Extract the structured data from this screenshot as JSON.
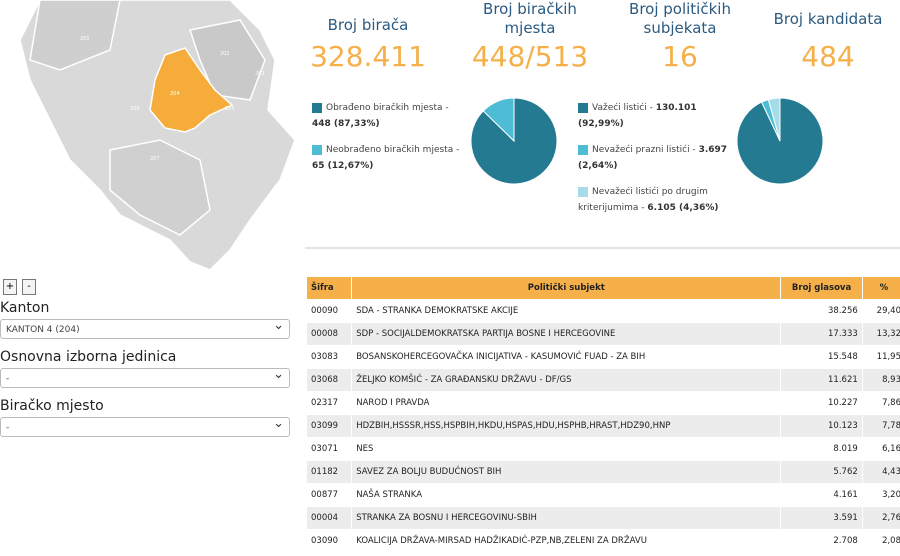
{
  "map": {
    "regions": [
      "204",
      "201",
      "202",
      "203",
      "205",
      "206",
      "207"
    ]
  },
  "zoom": {
    "plus": "+",
    "minus": "-"
  },
  "filters": [
    {
      "label": "Kanton",
      "value": "KANTON 4 (204)"
    },
    {
      "label": "Osnovna izborna jedinica",
      "value": "-"
    },
    {
      "label": "Biračko mjesto",
      "value": "-"
    }
  ],
  "stats": [
    {
      "label": "Broj birača",
      "value": "328.411"
    },
    {
      "label": "Broj biračkih mjesta",
      "value": "448/513"
    },
    {
      "label": "Broj političkih subjekata",
      "value": "16"
    },
    {
      "label": "Broj kandidata",
      "value": "484"
    }
  ],
  "pies": [
    {
      "type": "pie",
      "slices": [
        {
          "label": "Obrađeno biračkih mjesta -",
          "value": 448,
          "value_label": "448 (87,33%)",
          "color": "#237a91"
        },
        {
          "label": "Neobrađeno biračkih mjesta -",
          "value": 65,
          "value_label": "65 (12,67%)",
          "color": "#4dbcd4"
        }
      ]
    },
    {
      "type": "pie",
      "slices": [
        {
          "label": "Važeći listići -",
          "value": 130101,
          "value_label": "130.101 (92,99%)",
          "color": "#237a91"
        },
        {
          "label": "Nevažeći prazni listići -",
          "value": 3697,
          "value_label": "3.697 (2,64%)",
          "color": "#4dbcd4"
        },
        {
          "label": "Nevažeći listići po drugim kriterijumima -",
          "value": 6105,
          "value_label": "6.105 (4,36%)",
          "color": "#a6dbe8"
        }
      ]
    }
  ],
  "table": {
    "header": [
      "Šifra",
      "Politički subjekt",
      "Broj glasova",
      "%"
    ],
    "rows": [
      [
        "00090",
        "SDA - STRANKA DEMOKRATSKE AKCIJE",
        "38.256",
        "29,40"
      ],
      [
        "00008",
        "SDP - SOCIJALDEMOKRATSKA PARTIJA BOSNE I HERCEGOVINE",
        "17.333",
        "13,32"
      ],
      [
        "03083",
        "BOSANSKOHERCEGOVAČKA INICIJATIVA - KASUMOVIĆ FUAD - ZA BIH",
        "15.548",
        "11,95"
      ],
      [
        "03068",
        "ŽELJKO KOMŠIĆ - ZA GRAĐANSKU DRŽAVU - DF/GS",
        "11.621",
        "8,93"
      ],
      [
        "02317",
        "NAROD I PRAVDA",
        "10.227",
        "7,86"
      ],
      [
        "03099",
        "HDZBIH,HSSSR,HSS,HSPBIH,HKDU,HSPAS,HDU,HSPHB,HRAST,HDZ90,HNP",
        "10.123",
        "7,78"
      ],
      [
        "03071",
        "NES",
        "8.019",
        "6,16"
      ],
      [
        "01182",
        "SAVEZ ZA BOLJU BUDUĆNOST BIH",
        "5.762",
        "4,43"
      ],
      [
        "00877",
        "NAŠA STRANKA",
        "4.161",
        "3,20"
      ],
      [
        "00004",
        "STRANKA ZA BOSNU I HERCEGOVINU-SBIH",
        "3.591",
        "2,76"
      ],
      [
        "03090",
        "KOALICIJA DRŽAVA-MIRSAD HADŽIKADIĆ-PZP,NB,ZELENI ZA DRŽAVU",
        "2.708",
        "2,08"
      ]
    ]
  }
}
